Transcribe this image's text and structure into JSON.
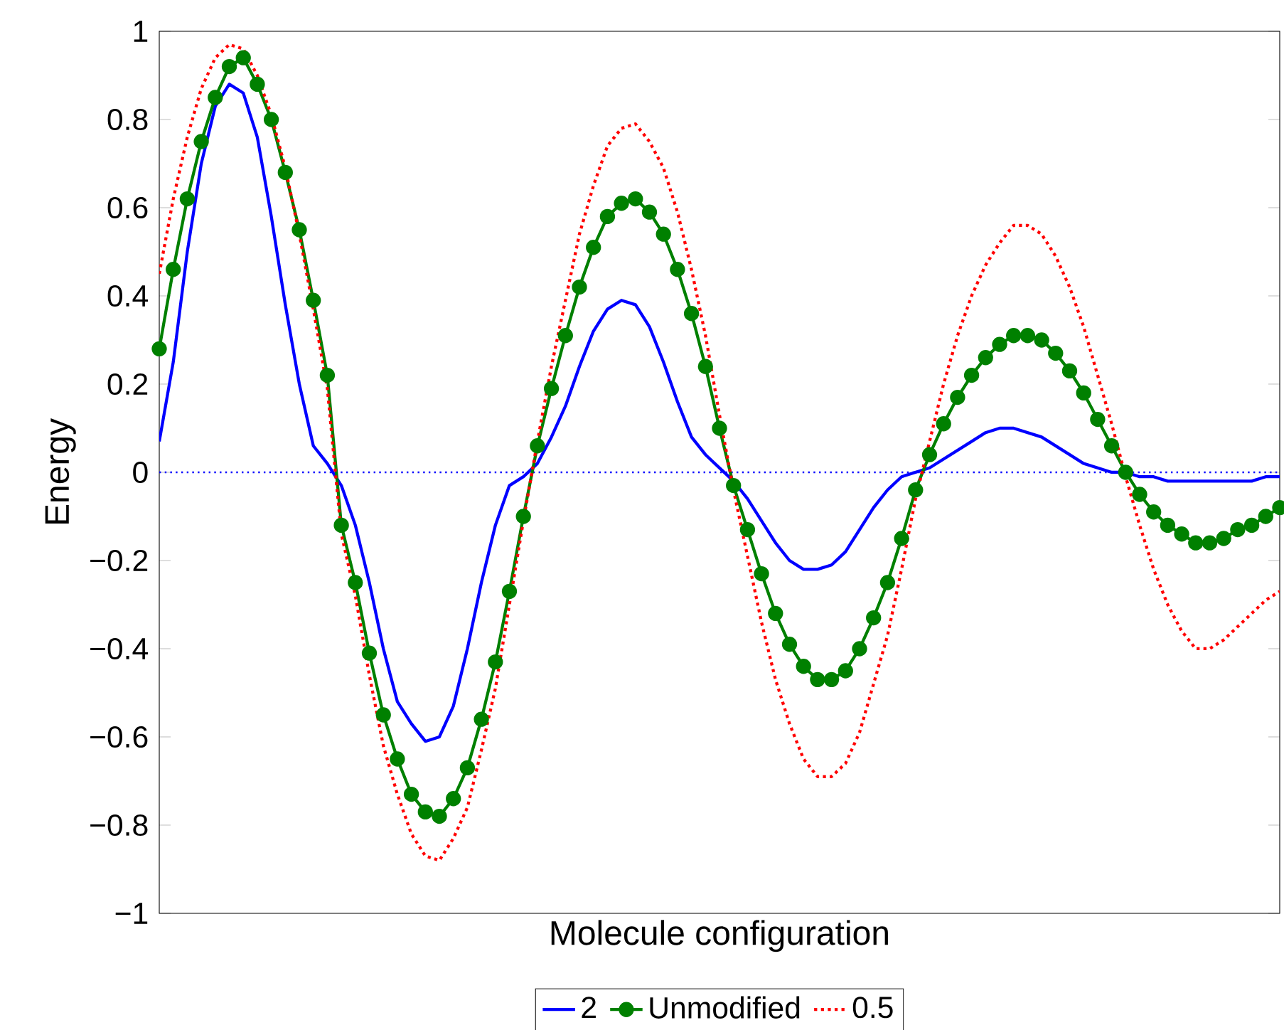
{
  "chart_data": {
    "type": "line",
    "xlabel": "Molecule configuration",
    "ylabel": "Energy",
    "categories": [
      null,
      null,
      null,
      null,
      null,
      null,
      null,
      null,
      null,
      null,
      null,
      null,
      null,
      null,
      null,
      null,
      null,
      null,
      null,
      null,
      null,
      null,
      null,
      null,
      null,
      null,
      null,
      null,
      null,
      null,
      null,
      null,
      null,
      null,
      null,
      null,
      null,
      null,
      null,
      null,
      null,
      null,
      null,
      null,
      null,
      null,
      null,
      null,
      null,
      null,
      null,
      null,
      null,
      null,
      null,
      null,
      null,
      null,
      null,
      null,
      null,
      null,
      null,
      null,
      null,
      null,
      null,
      null,
      null,
      null,
      null,
      null,
      null,
      null,
      null,
      null,
      null,
      null,
      null,
      null,
      null
    ],
    "series": [
      {
        "name": "2",
        "color": "#0000ff",
        "marker": "none",
        "line_style": "solid",
        "values": [
          0.07,
          0.25,
          0.5,
          0.7,
          0.83,
          0.88,
          0.86,
          0.76,
          0.58,
          0.38,
          0.2,
          0.06,
          0.02,
          -0.03,
          -0.12,
          -0.25,
          -0.4,
          -0.52,
          -0.57,
          -0.61,
          -0.6,
          -0.53,
          -0.4,
          -0.25,
          -0.12,
          -0.03,
          -0.01,
          0.02,
          0.08,
          0.15,
          0.24,
          0.32,
          0.37,
          0.39,
          0.38,
          0.33,
          0.25,
          0.16,
          0.08,
          0.04,
          0.01,
          -0.02,
          -0.06,
          -0.11,
          -0.16,
          -0.2,
          -0.22,
          -0.22,
          -0.21,
          -0.18,
          -0.13,
          -0.08,
          -0.04,
          -0.01,
          0.0,
          0.01,
          0.03,
          0.05,
          0.07,
          0.09,
          0.1,
          0.1,
          0.09,
          0.08,
          0.06,
          0.04,
          0.02,
          0.01,
          0.0,
          0.0,
          -0.01,
          -0.01,
          -0.02,
          -0.02,
          -0.02,
          -0.02,
          -0.02,
          -0.02,
          -0.02,
          -0.01,
          -0.01
        ]
      },
      {
        "name": "Unmodified",
        "color": "#008000",
        "marker": "circle",
        "line_style": "solid",
        "values": [
          0.28,
          0.46,
          0.62,
          0.75,
          0.85,
          0.92,
          0.94,
          0.88,
          0.8,
          0.68,
          0.55,
          0.39,
          0.22,
          -0.12,
          -0.25,
          -0.41,
          -0.55,
          -0.65,
          -0.73,
          -0.77,
          -0.78,
          -0.74,
          -0.67,
          -0.56,
          -0.43,
          -0.27,
          -0.1,
          0.06,
          0.19,
          0.31,
          0.42,
          0.51,
          0.58,
          0.61,
          0.62,
          0.59,
          0.54,
          0.46,
          0.36,
          0.24,
          0.1,
          -0.03,
          -0.13,
          -0.23,
          -0.32,
          -0.39,
          -0.44,
          -0.47,
          -0.47,
          -0.45,
          -0.4,
          -0.33,
          -0.25,
          -0.15,
          -0.04,
          0.04,
          0.11,
          0.17,
          0.22,
          0.26,
          0.29,
          0.31,
          0.31,
          0.3,
          0.27,
          0.23,
          0.18,
          0.12,
          0.06,
          0.0,
          -0.05,
          -0.09,
          -0.12,
          -0.14,
          -0.16,
          -0.16,
          -0.15,
          -0.13,
          -0.12,
          -0.1,
          -0.08
        ]
      },
      {
        "name": "0.5",
        "color": "#ff0000",
        "marker": "none",
        "line_style": "dotted",
        "values": [
          0.45,
          0.62,
          0.76,
          0.87,
          0.94,
          0.97,
          0.96,
          0.9,
          0.81,
          0.69,
          0.54,
          0.37,
          0.19,
          -0.14,
          -0.28,
          -0.46,
          -0.62,
          -0.73,
          -0.82,
          -0.87,
          -0.88,
          -0.83,
          -0.76,
          -0.63,
          -0.49,
          -0.3,
          -0.11,
          0.07,
          0.24,
          0.39,
          0.54,
          0.65,
          0.74,
          0.78,
          0.79,
          0.75,
          0.69,
          0.59,
          0.46,
          0.31,
          0.13,
          -0.04,
          -0.19,
          -0.34,
          -0.47,
          -0.57,
          -0.65,
          -0.69,
          -0.69,
          -0.66,
          -0.59,
          -0.48,
          -0.37,
          -0.22,
          -0.06,
          0.07,
          0.2,
          0.31,
          0.4,
          0.47,
          0.52,
          0.56,
          0.56,
          0.54,
          0.49,
          0.42,
          0.33,
          0.22,
          0.11,
          -0.01,
          -0.12,
          -0.22,
          -0.3,
          -0.36,
          -0.4,
          -0.4,
          -0.38,
          -0.35,
          -0.32,
          -0.29,
          -0.27
        ]
      }
    ],
    "ref_lines": [
      {
        "axis": "y",
        "value": 0,
        "color": "#0000ff",
        "line_style": "dotted"
      }
    ],
    "ylim": [
      -1,
      1
    ],
    "yticks": [
      {
        "value": -1,
        "label": "−1"
      },
      {
        "value": -0.8,
        "label": "−0.8"
      },
      {
        "value": -0.6,
        "label": "−0.6"
      },
      {
        "value": -0.4,
        "label": "−0.4"
      },
      {
        "value": -0.2,
        "label": "−0.2"
      },
      0,
      0.2,
      0.4,
      0.6,
      0.8,
      1
    ],
    "tick_labels": "y",
    "legend": "bottom"
  }
}
